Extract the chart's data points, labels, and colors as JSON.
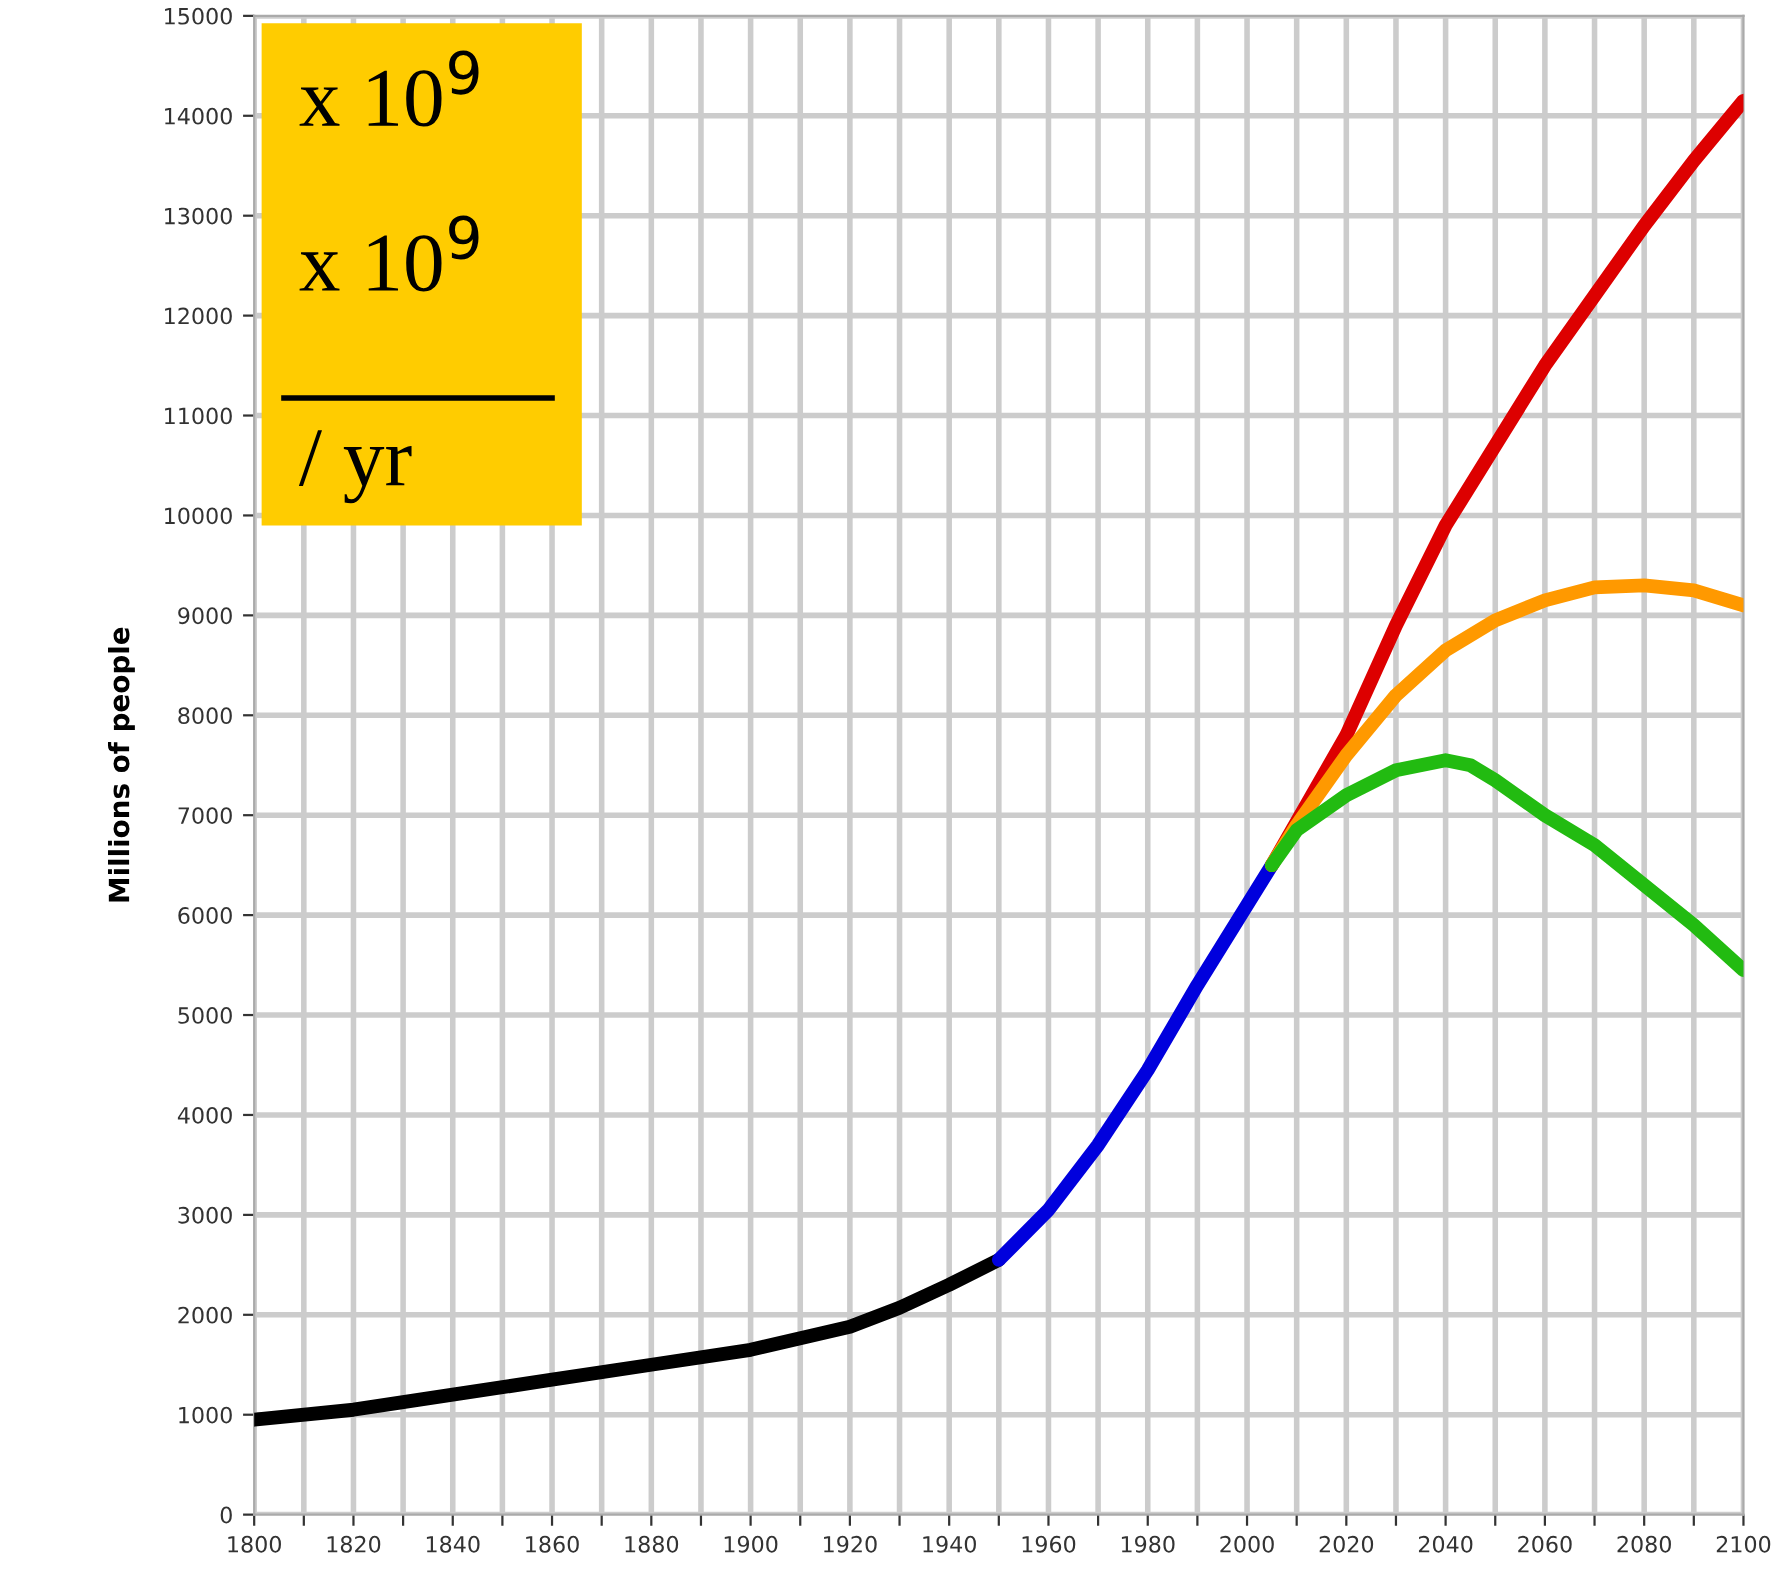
{
  "chart_data": {
    "type": "line",
    "ylabel": "Millions of people",
    "annotations": [
      "x 10$^{9}$",
      "x 10$^{9}$",
      "/ yr"
    ],
    "series": [
      {
        "color": "#000000",
        "x": [
          1800,
          1820,
          1840,
          1860,
          1880,
          1900,
          1920,
          1930,
          1940,
          1950
        ],
        "values": [
          950,
          1050,
          1200,
          1350,
          1500,
          1650,
          1880,
          2070,
          2300,
          2550
        ]
      },
      {
        "color": "#0000dd",
        "x": [
          1950,
          1960,
          1970,
          1980,
          1990,
          2000,
          2005
        ],
        "values": [
          2550,
          3050,
          3700,
          4450,
          5300,
          6100,
          6500
        ]
      },
      {
        "color": "#dd0000",
        "x": [
          2005,
          2020,
          2030,
          2040,
          2050,
          2060,
          2070,
          2080,
          2090,
          2100
        ],
        "values": [
          6500,
          7800,
          8900,
          9900,
          10700,
          11500,
          12200,
          12900,
          13550,
          14150
        ]
      },
      {
        "color": "#ff9900",
        "x": [
          2005,
          2010,
          2020,
          2030,
          2040,
          2050,
          2060,
          2070,
          2080,
          2090,
          2100
        ],
        "values": [
          6500,
          6900,
          7600,
          8200,
          8650,
          8950,
          9150,
          9280,
          9300,
          9250,
          9100
        ]
      },
      {
        "color": "#22bb11",
        "x": [
          2005,
          2010,
          2020,
          2030,
          2040,
          2045,
          2050,
          2060,
          2070,
          2080,
          2090,
          2100
        ],
        "values": [
          6500,
          6850,
          7200,
          7450,
          7550,
          7500,
          7350,
          7000,
          6700,
          6300,
          5900,
          5450
        ]
      }
    ],
    "xlim": [
      1800,
      2100
    ],
    "xticks": [
      1800,
      {
        "value": 1810,
        "label": null
      },
      1820,
      {
        "value": 1830,
        "label": null
      },
      1840,
      {
        "value": 1850,
        "label": null
      },
      1860,
      {
        "value": 1870,
        "label": null
      },
      1880,
      {
        "value": 1890,
        "label": null
      },
      1900,
      {
        "value": 1910,
        "label": null
      },
      1920,
      {
        "value": 1930,
        "label": null
      },
      1940,
      {
        "value": 1950,
        "label": null
      },
      1960,
      {
        "value": 1970,
        "label": null
      },
      1980,
      {
        "value": 1990,
        "label": null
      },
      2000,
      {
        "value": 2010,
        "label": null
      },
      2020,
      {
        "value": 2030,
        "label": null
      },
      2040,
      {
        "value": 2050,
        "label": null
      },
      2060,
      {
        "value": 2070,
        "label": null
      },
      2080,
      {
        "value": 2090,
        "label": null
      },
      2100
    ],
    "ylim": [
      0,
      15000
    ],
    "yticks": [
      0,
      1000,
      2000,
      3000,
      4000,
      5000,
      6000,
      7000,
      8000,
      9000,
      10000,
      11000,
      12000,
      13000,
      14000,
      15000
    ],
    "grid": true,
    "marker": "none",
    "line_style": "solid"
  }
}
